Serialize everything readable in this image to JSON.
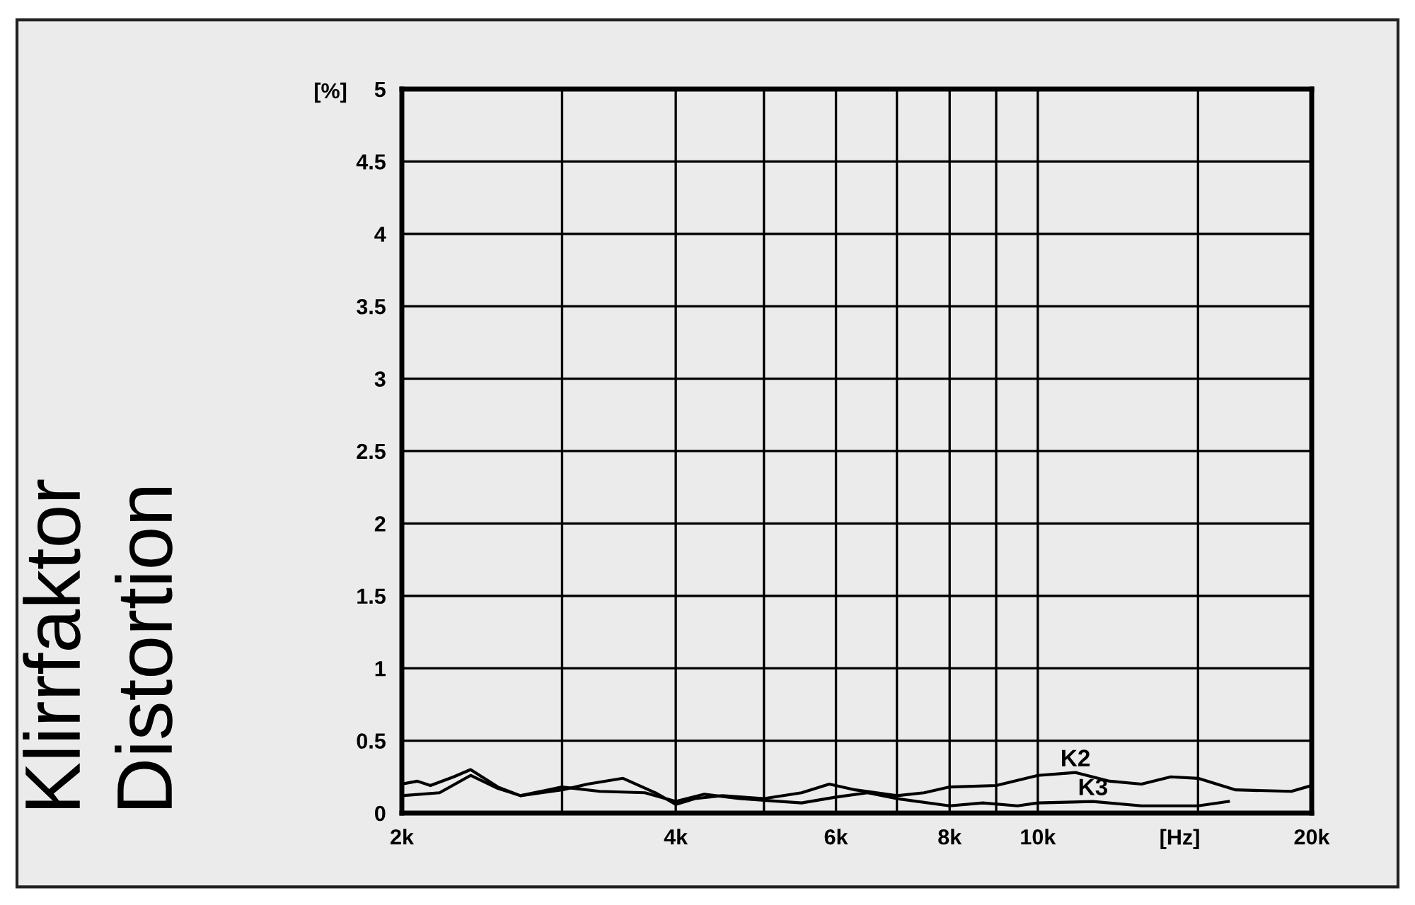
{
  "chart_data": {
    "type": "line",
    "xlabel": "[Hz]",
    "ylabel": "[%]",
    "log": "x",
    "grid": true,
    "legend": false,
    "marker": "none",
    "line_style": "solid",
    "annotations": [
      "Klirrfaktor",
      "Distortion"
    ],
    "xlim": [
      2000,
      20000
    ],
    "ylim": [
      0,
      5
    ],
    "xticks": [
      {
        "value": 2000,
        "label": "2k"
      },
      {
        "value": 3000,
        "label": null
      },
      {
        "value": 4000,
        "label": "4k"
      },
      {
        "value": 5000,
        "label": null
      },
      {
        "value": 6000,
        "label": "6k"
      },
      {
        "value": 7000,
        "label": null
      },
      {
        "value": 8000,
        "label": "8k"
      },
      {
        "value": 9000,
        "label": null
      },
      {
        "value": 10000,
        "label": "10k"
      },
      {
        "value": 15000,
        "label": null
      },
      {
        "value": 20000,
        "label": "20k"
      }
    ],
    "yticks": [
      0,
      0.5,
      1,
      1.5,
      2,
      2.5,
      3,
      3.5,
      4,
      4.5,
      5
    ],
    "series": [
      {
        "name": "K2",
        "color": "#000000",
        "x": [
          2000,
          2080,
          2150,
          2280,
          2380,
          2550,
          2700,
          3000,
          3200,
          3500,
          3800,
          4000,
          4200,
          4500,
          5000,
          5500,
          5900,
          6300,
          7000,
          7500,
          8000,
          9000,
          10000,
          11000,
          12000,
          13000,
          14000,
          15000,
          16500,
          19000,
          20000
        ],
        "values": [
          0.2,
          0.22,
          0.19,
          0.25,
          0.3,
          0.18,
          0.12,
          0.16,
          0.2,
          0.24,
          0.14,
          0.06,
          0.1,
          0.12,
          0.1,
          0.14,
          0.2,
          0.16,
          0.12,
          0.14,
          0.18,
          0.19,
          0.26,
          0.28,
          0.22,
          0.2,
          0.25,
          0.24,
          0.16,
          0.15,
          0.19
        ]
      },
      {
        "name": "K3",
        "color": "#000000",
        "x": [
          2000,
          2200,
          2380,
          2550,
          2700,
          3000,
          3300,
          3700,
          4000,
          4300,
          4700,
          5500,
          6000,
          6500,
          7000,
          8000,
          8700,
          9500,
          10000,
          11500,
          13000,
          15000,
          16200
        ],
        "values": [
          0.12,
          0.14,
          0.26,
          0.17,
          0.12,
          0.18,
          0.15,
          0.14,
          0.08,
          0.13,
          0.1,
          0.07,
          0.11,
          0.14,
          0.1,
          0.05,
          0.07,
          0.05,
          0.07,
          0.08,
          0.05,
          0.05,
          0.08
        ]
      }
    ]
  }
}
